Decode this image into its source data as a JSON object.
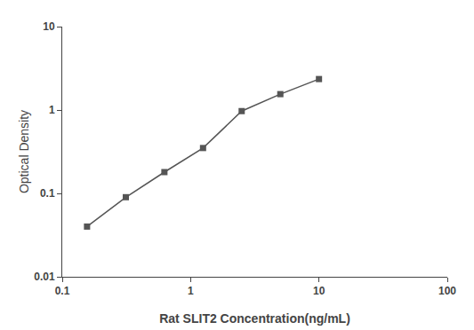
{
  "chart_data": {
    "type": "line",
    "x": [
      0.156,
      0.313,
      0.625,
      1.25,
      2.5,
      5.0,
      10.0
    ],
    "values": [
      0.04,
      0.09,
      0.18,
      0.35,
      0.97,
      1.55,
      2.35
    ],
    "color": "#555555",
    "marker": "square",
    "xlabel": "Rat SLIT2 Concentration(ng/mL)",
    "ylabel": "Optical Density",
    "xlim": [
      0.1,
      100
    ],
    "ylim": [
      0.01,
      10
    ],
    "xticks": [
      0.1,
      1,
      10,
      100
    ],
    "yticks": [
      0.01,
      0.1,
      1,
      10
    ],
    "log": true,
    "grid": false
  }
}
